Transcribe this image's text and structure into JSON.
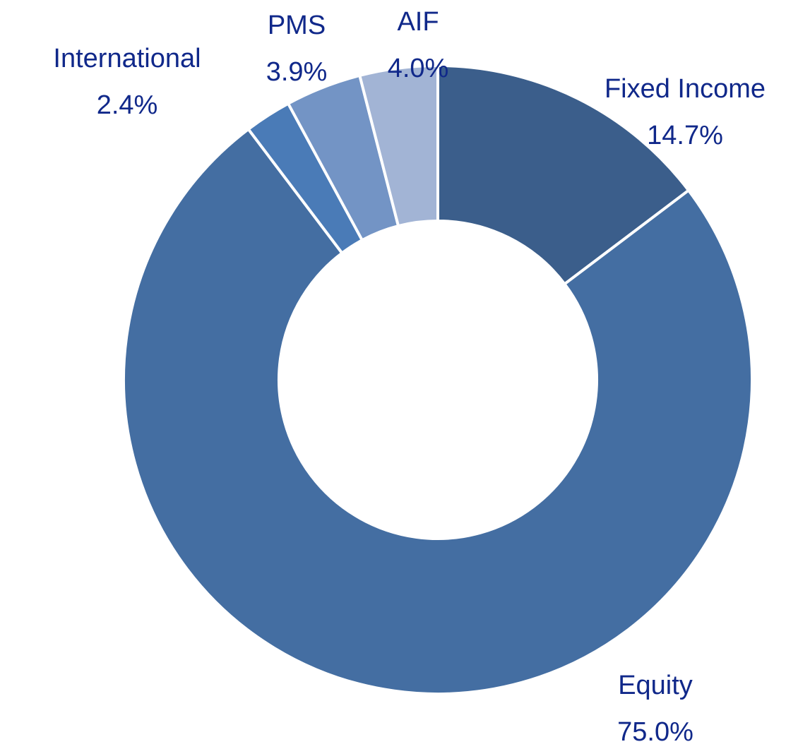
{
  "chart_data": {
    "type": "donut",
    "categories": [
      "Fixed Income",
      "Equity",
      "International",
      "PMS",
      "AIF"
    ],
    "values": [
      14.7,
      75.0,
      2.4,
      3.9,
      4.0
    ],
    "value_labels": [
      "14.7%",
      "75.0%",
      "2.4%",
      "3.9%",
      "4.0%"
    ],
    "colors": [
      "#3b5e8b",
      "#446ea2",
      "#4a7bb7",
      "#7394c5",
      "#a2b4d5"
    ]
  }
}
